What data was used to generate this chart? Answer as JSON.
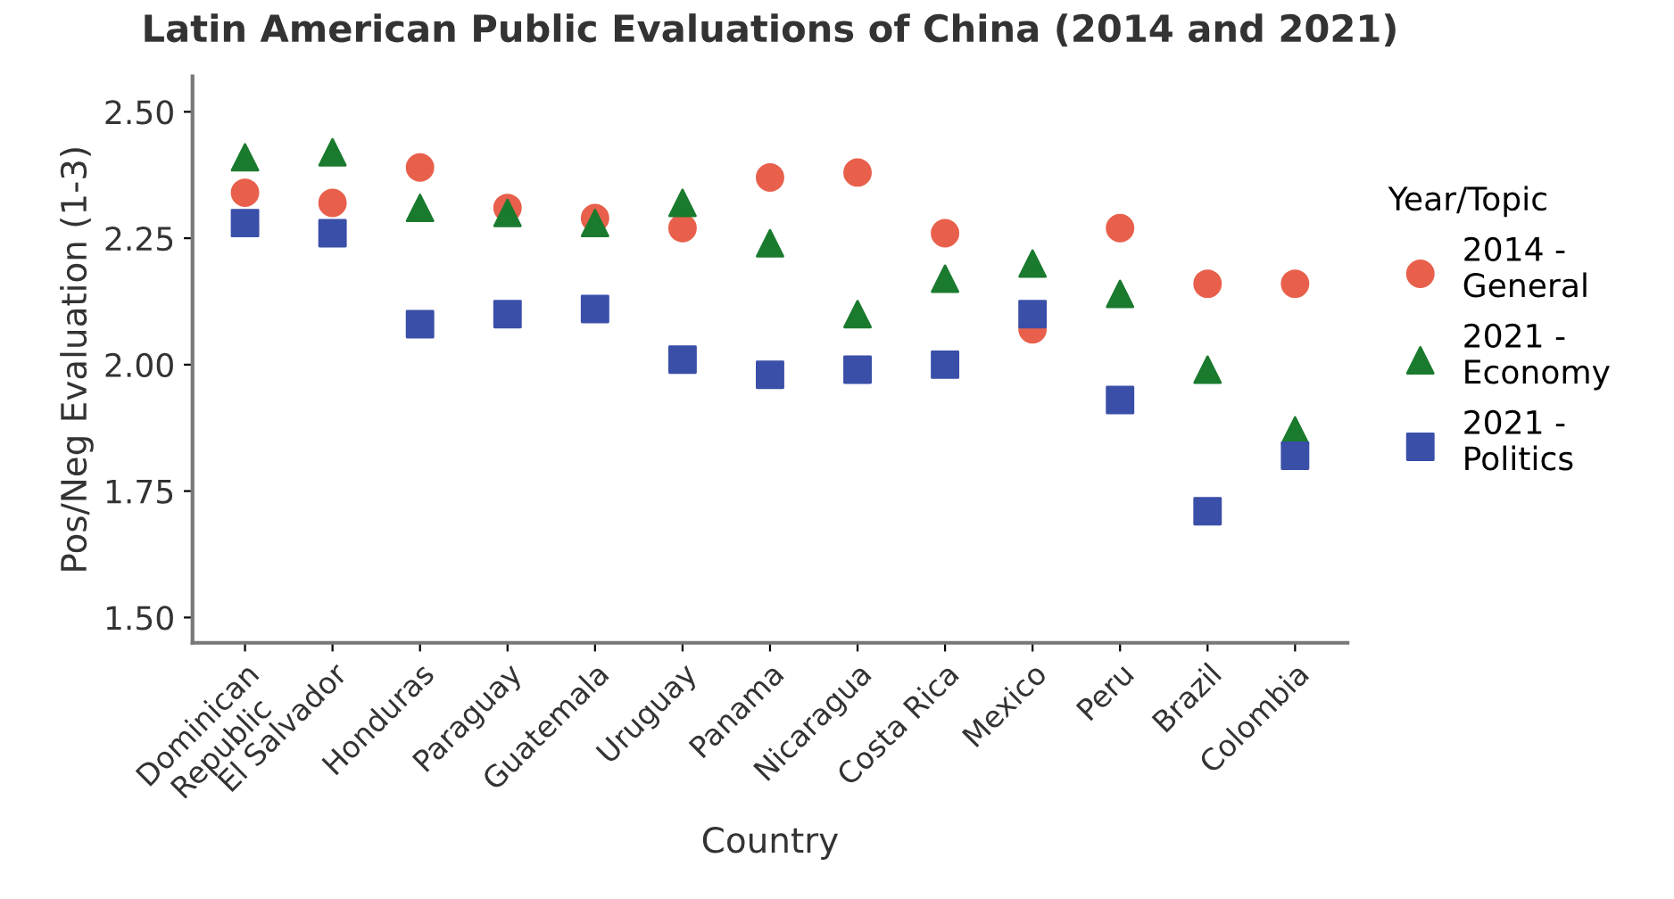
{
  "chart_data": {
    "type": "scatter",
    "title": "Latin American Public Evaluations of China (2014 and 2021)",
    "xlabel": "Country",
    "ylabel": "Pos/Neg Evaluation (1-3)",
    "legend_title": "Year/Topic",
    "categories": [
      "Dominican\nRepublic",
      "El Salvador",
      "Honduras",
      "Paraguay",
      "Guatemala",
      "Uruguay",
      "Panama",
      "Nicaragua",
      "Costa Rica",
      "Mexico",
      "Peru",
      "Brazil",
      "Colombia"
    ],
    "series": [
      {
        "name": "2014 -\nGeneral",
        "color": "#e8604c",
        "marker": "circle",
        "values": [
          2.34,
          2.32,
          2.39,
          2.31,
          2.29,
          2.27,
          2.37,
          2.38,
          2.26,
          2.07,
          2.27,
          2.16,
          2.16
        ]
      },
      {
        "name": "2021 -\nEconomy",
        "color": "#1a7a2e",
        "marker": "triangle",
        "values": [
          2.41,
          2.42,
          2.31,
          2.3,
          2.28,
          2.32,
          2.24,
          2.1,
          2.17,
          2.2,
          2.14,
          1.99,
          1.87
        ]
      },
      {
        "name": "2021 -\nPolitics",
        "color": "#3a4fa8",
        "marker": "square",
        "values": [
          2.28,
          2.26,
          2.08,
          2.1,
          2.11,
          2.01,
          1.98,
          1.99,
          2.0,
          2.1,
          1.93,
          1.71,
          1.82
        ]
      }
    ],
    "ylim": [
      1.45,
      2.57
    ],
    "yticks": [
      {
        "value": 1.5,
        "label": "1.50"
      },
      {
        "value": 1.75,
        "label": "1.75"
      },
      {
        "value": 2.0,
        "label": "2.00"
      },
      {
        "value": 2.25,
        "label": "2.25"
      },
      {
        "value": 2.5,
        "label": "2.50"
      }
    ],
    "grid": false,
    "legend": "right"
  }
}
